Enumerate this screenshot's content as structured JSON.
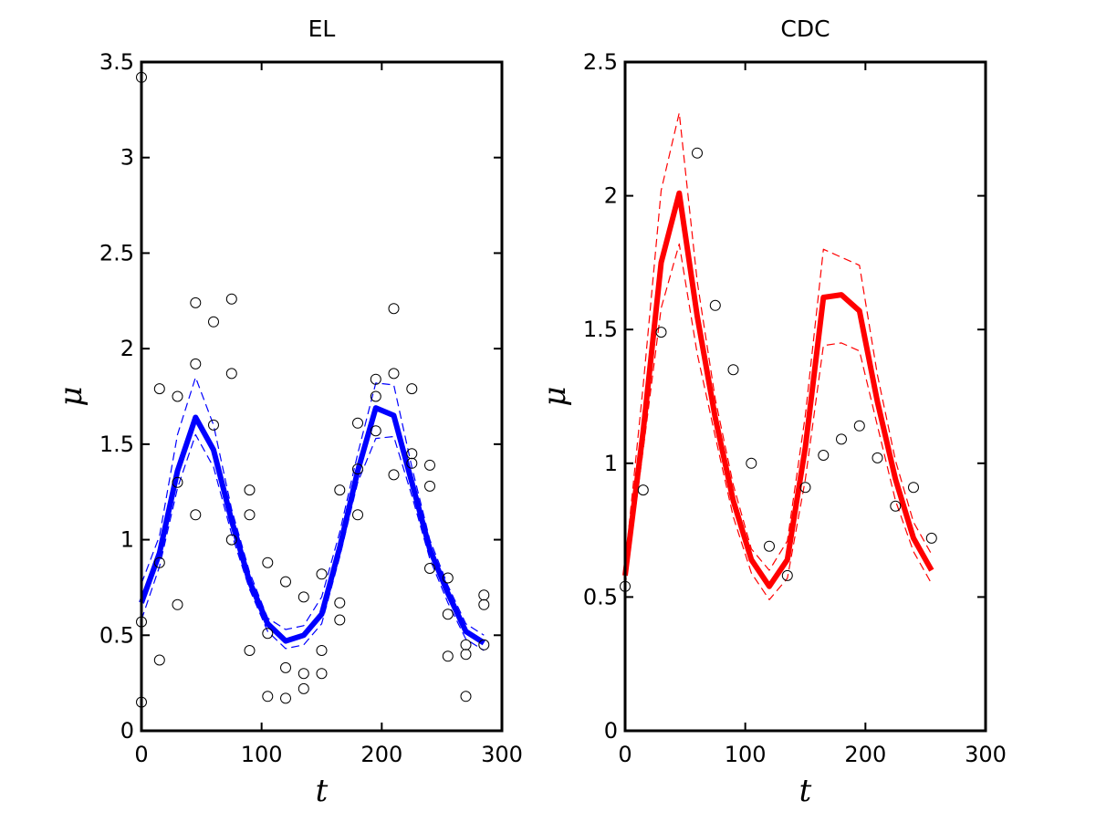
{
  "chart_data": [
    {
      "type": "line",
      "title": "EL",
      "xlabel": "t",
      "ylabel": "μ",
      "xlim": [
        0,
        300
      ],
      "ylim": [
        0,
        3.5
      ],
      "xticks": [
        "0",
        "100",
        "200",
        "300"
      ],
      "yticks": [
        "0",
        "0.5",
        "1",
        "1.5",
        "2",
        "2.5",
        "3",
        "3.5"
      ],
      "grid": false,
      "series": [
        {
          "role": "mean",
          "color": "#0000ff",
          "style": "solid-thick",
          "x": [
            0,
            15,
            30,
            45,
            60,
            75,
            90,
            105,
            120,
            135,
            150,
            165,
            180,
            195,
            210,
            225,
            240,
            255,
            270,
            285
          ],
          "y": [
            0.67,
            0.93,
            1.36,
            1.64,
            1.47,
            1.1,
            0.78,
            0.56,
            0.47,
            0.5,
            0.61,
            0.96,
            1.36,
            1.69,
            1.65,
            1.3,
            0.95,
            0.72,
            0.52,
            0.46
          ]
        },
        {
          "role": "upper-band",
          "color": "#0000ff",
          "style": "dashed",
          "x": [
            0,
            15,
            30,
            45,
            60,
            75,
            90,
            105,
            120,
            135,
            150,
            165,
            180,
            195,
            210,
            225,
            240,
            255,
            270,
            285
          ],
          "y": [
            0.77,
            1.02,
            1.55,
            1.85,
            1.6,
            1.16,
            0.83,
            0.59,
            0.53,
            0.55,
            0.7,
            1.04,
            1.45,
            1.82,
            1.81,
            1.38,
            1.0,
            0.76,
            0.56,
            0.5
          ]
        },
        {
          "role": "lower-band",
          "color": "#0000ff",
          "style": "dashed",
          "x": [
            0,
            15,
            30,
            45,
            60,
            75,
            90,
            105,
            120,
            135,
            150,
            165,
            180,
            195,
            210,
            225,
            240,
            255,
            270,
            285
          ],
          "y": [
            0.58,
            0.86,
            1.27,
            1.55,
            1.38,
            1.03,
            0.74,
            0.52,
            0.43,
            0.45,
            0.56,
            0.91,
            1.3,
            1.53,
            1.54,
            1.23,
            0.9,
            0.67,
            0.48,
            0.42
          ]
        }
      ],
      "observations": {
        "marker": "open-circle",
        "color": "#000000",
        "x": [
          0,
          0,
          0,
          15,
          15,
          15,
          30,
          30,
          30,
          45,
          45,
          45,
          60,
          60,
          75,
          75,
          75,
          90,
          90,
          90,
          105,
          105,
          105,
          120,
          120,
          120,
          135,
          135,
          135,
          150,
          150,
          150,
          165,
          165,
          165,
          180,
          180,
          180,
          195,
          195,
          195,
          210,
          210,
          210,
          225,
          225,
          225,
          240,
          240,
          240,
          255,
          255,
          255,
          270,
          270,
          270,
          285,
          285,
          285
        ],
        "y": [
          3.42,
          0.57,
          0.15,
          1.79,
          0.88,
          0.37,
          1.75,
          1.3,
          0.66,
          2.24,
          1.92,
          1.13,
          2.14,
          1.6,
          2.26,
          1.87,
          1.0,
          1.26,
          1.13,
          0.42,
          0.88,
          0.51,
          0.18,
          0.78,
          0.33,
          0.17,
          0.7,
          0.3,
          0.22,
          0.82,
          0.42,
          0.3,
          1.26,
          0.67,
          0.58,
          1.61,
          1.37,
          1.13,
          1.84,
          1.75,
          1.57,
          2.21,
          1.87,
          1.34,
          1.79,
          1.45,
          1.4,
          1.39,
          1.28,
          0.85,
          0.8,
          0.61,
          0.39,
          0.45,
          0.4,
          0.18,
          0.71,
          0.66,
          0.45
        ]
      }
    },
    {
      "type": "line",
      "title": "CDC",
      "xlabel": "t",
      "ylabel": "μ",
      "xlim": [
        0,
        300
      ],
      "ylim": [
        0,
        2.5
      ],
      "xticks": [
        "0",
        "100",
        "200",
        "300"
      ],
      "yticks": [
        "0",
        "0.5",
        "1",
        "1.5",
        "2",
        "2.5"
      ],
      "grid": false,
      "series": [
        {
          "role": "mean",
          "color": "#ff0000",
          "style": "solid-thick",
          "x": [
            0,
            15,
            30,
            45,
            60,
            75,
            90,
            105,
            120,
            135,
            150,
            165,
            180,
            195,
            210,
            225,
            240,
            255
          ],
          "y": [
            0.58,
            1.12,
            1.75,
            2.01,
            1.55,
            1.17,
            0.86,
            0.64,
            0.54,
            0.64,
            1.06,
            1.62,
            1.63,
            1.57,
            1.23,
            0.94,
            0.72,
            0.6
          ]
        },
        {
          "role": "upper-band",
          "color": "#ff0000",
          "style": "dashed",
          "x": [
            0,
            15,
            30,
            45,
            60,
            75,
            90,
            105,
            120,
            135,
            150,
            165,
            180,
            195,
            210,
            225,
            240,
            255
          ],
          "y": [
            0.62,
            1.29,
            2.02,
            2.31,
            1.68,
            1.24,
            0.92,
            0.68,
            0.6,
            0.71,
            1.18,
            1.8,
            1.77,
            1.74,
            1.33,
            1.01,
            0.78,
            0.66
          ]
        },
        {
          "role": "lower-band",
          "color": "#ff0000",
          "style": "dashed",
          "x": [
            0,
            15,
            30,
            45,
            60,
            75,
            90,
            105,
            120,
            135,
            150,
            165,
            180,
            195,
            210,
            225,
            240,
            255
          ],
          "y": [
            0.54,
            1.05,
            1.58,
            1.82,
            1.41,
            1.1,
            0.8,
            0.59,
            0.49,
            0.57,
            0.94,
            1.44,
            1.45,
            1.42,
            1.14,
            0.86,
            0.67,
            0.55
          ]
        }
      ],
      "observations": {
        "marker": "open-circle",
        "color": "#000000",
        "x": [
          0,
          15,
          30,
          60,
          75,
          90,
          105,
          120,
          135,
          150,
          165,
          180,
          195,
          210,
          225,
          240,
          255
        ],
        "y": [
          0.54,
          0.9,
          1.49,
          2.16,
          1.59,
          1.35,
          1.0,
          0.69,
          0.58,
          0.91,
          1.03,
          1.09,
          1.14,
          1.02,
          0.84,
          0.91,
          0.72
        ]
      }
    }
  ]
}
